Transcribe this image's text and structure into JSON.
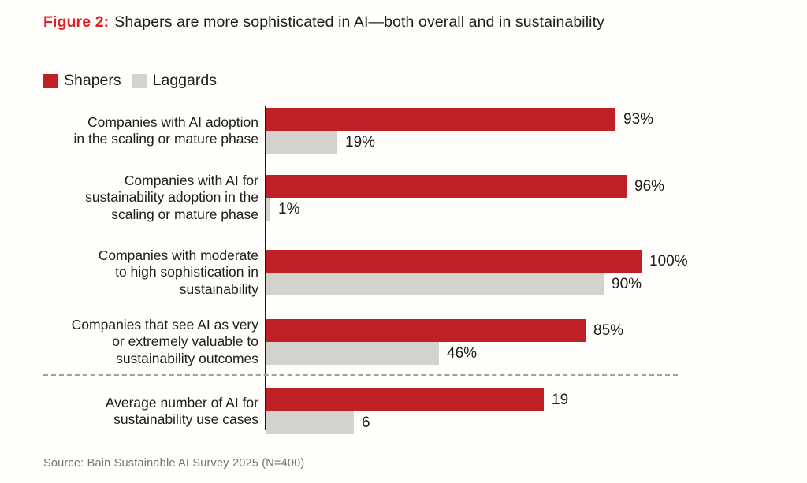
{
  "title": {
    "prefix": "Figure 2:",
    "text": "Shapers are more sophisticated in AI—both overall and in sustainability"
  },
  "legend": {
    "items": [
      {
        "label": "Shapers",
        "color": "#be2026"
      },
      {
        "label": "Laggards",
        "color": "#d4d2cc"
      }
    ]
  },
  "source": "Source: Bain Sustainable AI Survey 2025 (N=400)",
  "colors": {
    "shapers_red": "#be2026",
    "laggards_gray": "#d4d2cc",
    "figure_label_red": "#e41e26",
    "text_dark": "#1d1d1b",
    "source_gray": "#737373",
    "axis_black": "#1a1a1a",
    "divider_gray": "#a0a0a0",
    "background": "#fffefa"
  },
  "chart_data": {
    "type": "bar",
    "orientation": "horizontal",
    "title": "Shapers are more sophisticated in AI—both overall and in sustainability",
    "legend_position": "top-left",
    "grid": false,
    "series_names": [
      "Shapers",
      "Laggards"
    ],
    "percent_axis_range": [
      0,
      100
    ],
    "count_axis_range": [
      0,
      26
    ],
    "groups": [
      {
        "label_lines": [
          "Companies with AI adoption",
          "in the scaling or mature phase"
        ],
        "unit": "percent",
        "values": [
          93,
          19
        ],
        "value_labels": [
          "93%",
          "19%"
        ]
      },
      {
        "label_lines": [
          "Companies with AI for",
          "sustainability adoption in the",
          "scaling or mature phase"
        ],
        "unit": "percent",
        "values": [
          96,
          1
        ],
        "value_labels": [
          "96%",
          "1%"
        ]
      },
      {
        "label_lines": [
          "Companies with moderate",
          "to high sophistication in",
          "sustainability"
        ],
        "unit": "percent",
        "values": [
          100,
          90
        ],
        "value_labels": [
          "100%",
          "90%"
        ]
      },
      {
        "label_lines": [
          "Companies that see AI as very",
          "or extremely valuable to",
          "sustainability outcomes"
        ],
        "unit": "percent",
        "values": [
          85,
          46
        ],
        "value_labels": [
          "85%",
          "46%"
        ]
      },
      {
        "label_lines": [
          "Average number of AI for",
          "sustainability use cases"
        ],
        "unit": "count",
        "values": [
          19,
          6
        ],
        "value_labels": [
          "19",
          "6"
        ]
      }
    ]
  }
}
